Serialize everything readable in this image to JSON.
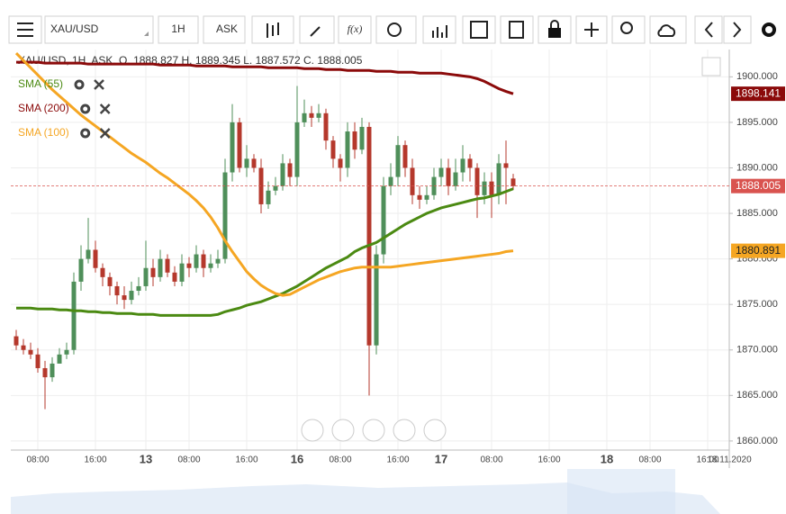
{
  "toolbar": {
    "symbol": "XAU/USD",
    "timeframe": "1H",
    "price_type": "ASK"
  },
  "chart_data": {
    "type": "candlestick",
    "header": "XAU/USD, 1H, ASK,",
    "ohlc_labels": [
      "O.",
      "H.",
      "L.",
      "C."
    ],
    "xlim": [
      0,
      99
    ],
    "xticks": [
      {
        "value": 3,
        "label": "08:00"
      },
      {
        "value": 11,
        "label": "16:00"
      },
      {
        "value": 18,
        "label": "13"
      },
      {
        "value": 24,
        "label": "08:00"
      },
      {
        "value": 32,
        "label": "16:00"
      },
      {
        "value": 39,
        "label": "16"
      },
      {
        "value": 45,
        "label": "08:00"
      },
      {
        "value": 53,
        "label": "16:00"
      },
      {
        "value": 59,
        "label": "17"
      },
      {
        "value": 66,
        "label": "08:00"
      },
      {
        "value": 74,
        "label": "16:00"
      },
      {
        "value": 82,
        "label": "18"
      },
      {
        "value": 88,
        "label": "08:00"
      },
      {
        "value": 96,
        "label": "16:00"
      },
      {
        "value": 99,
        "label": "18.11.2020"
      }
    ],
    "ylim": [
      1859,
      1903
    ],
    "yticks": [
      {
        "value": 1860,
        "label": "1860.000"
      },
      {
        "value": 1865,
        "label": "1865.000"
      },
      {
        "value": 1870,
        "label": "1870.000"
      },
      {
        "value": 1875,
        "label": "1875.000"
      },
      {
        "value": 1880,
        "label": "1880.000"
      },
      {
        "value": 1885,
        "label": "1885.000"
      },
      {
        "value": 1890,
        "label": "1890.000"
      },
      {
        "value": 1895,
        "label": "1895.000"
      },
      {
        "value": 1900,
        "label": "1900.000"
      }
    ],
    "grid": true,
    "up_color": "#4f8f5a",
    "down_color": "#b5382c",
    "open": [
      1871.5,
      1870.5,
      1870,
      1869.5,
      1868,
      1867,
      1868.5,
      1869.5,
      1870,
      1877.5,
      1880,
      1881,
      1879,
      1878,
      1877,
      1876,
      1875.5,
      1876.5,
      1877,
      1879,
      1878,
      1880,
      1878.5,
      1877.5,
      1879.5,
      1879,
      1880.5,
      1879,
      1879.5,
      1880,
      1889.5,
      1895,
      1890,
      1891,
      1890,
      1886,
      1887.5,
      1888,
      1890.5,
      1889,
      1895,
      1896,
      1895.5,
      1896,
      1893,
      1891,
      1890,
      1894,
      1892,
      1894.5,
      1870.5,
      1880.5,
      1888,
      1889,
      1892.5,
      1890,
      1887,
      1886.5,
      1887,
      1889,
      1890,
      1888,
      1889.5,
      1891,
      1890,
      1887,
      1888.5,
      1887,
      1890.5,
      1888.827
    ],
    "high": [
      1872.2,
      1871.2,
      1870.8,
      1870.2,
      1868.8,
      1869.2,
      1870.2,
      1870.8,
      1878.5,
      1881.5,
      1884.5,
      1882,
      1879.5,
      1878.5,
      1877.5,
      1877,
      1877.5,
      1878,
      1882,
      1880,
      1881,
      1880.5,
      1879.2,
      1880.5,
      1880.2,
      1881.5,
      1881,
      1880.5,
      1881,
      1891,
      1897,
      1895.5,
      1892.5,
      1891.5,
      1891,
      1888.5,
      1889,
      1891.5,
      1891,
      1899,
      1897.5,
      1896.8,
      1897,
      1896.5,
      1893.5,
      1891.5,
      1895,
      1895,
      1895.5,
      1895,
      1881.5,
      1889,
      1890.5,
      1893.5,
      1893,
      1891,
      1888,
      1888,
      1890,
      1891,
      1891,
      1891,
      1892.5,
      1891.5,
      1890.5,
      1889.5,
      1889.5,
      1891.5,
      1893,
      1889.345
    ],
    "low": [
      1870,
      1869.5,
      1869,
      1867.5,
      1863.5,
      1866.5,
      1868.5,
      1869,
      1869.5,
      1876.5,
      1879.5,
      1878.5,
      1877,
      1876,
      1875,
      1874.5,
      1875,
      1876,
      1876.5,
      1877,
      1877.5,
      1878,
      1877,
      1877,
      1878,
      1878.5,
      1878,
      1878.5,
      1879,
      1879.5,
      1888.5,
      1889.5,
      1889,
      1889.5,
      1885,
      1885.5,
      1887,
      1887.5,
      1888,
      1888,
      1894.5,
      1894.5,
      1895,
      1892,
      1890,
      1888.5,
      1889,
      1891,
      1891.5,
      1865,
      1869.5,
      1879.5,
      1887,
      1888,
      1889,
      1886,
      1885.5,
      1886,
      1886.5,
      1888,
      1887,
      1887.5,
      1888.5,
      1888.5,
      1884.5,
      1886,
      1884.5,
      1886,
      1886,
      1887.572
    ],
    "close": [
      1870.5,
      1870,
      1869.5,
      1868,
      1867,
      1868.5,
      1869.5,
      1870,
      1877.5,
      1880,
      1881,
      1879,
      1878,
      1877,
      1876,
      1875.5,
      1876.5,
      1877,
      1879,
      1878,
      1880,
      1878.5,
      1877.5,
      1879.5,
      1879,
      1880.5,
      1879,
      1879.5,
      1880,
      1889.5,
      1895,
      1890,
      1891,
      1890,
      1886,
      1887.5,
      1888,
      1890.5,
      1889,
      1895,
      1896,
      1895.5,
      1896,
      1893,
      1891,
      1890,
      1894,
      1892,
      1894.5,
      1870.5,
      1880.5,
      1888,
      1889,
      1892.5,
      1890,
      1887,
      1886.5,
      1887,
      1889,
      1890,
      1888,
      1889.5,
      1891,
      1890,
      1887,
      1888.5,
      1887,
      1890.5,
      1890,
      1888.005
    ],
    "series": [
      {
        "name": "SMA (55)",
        "color": "#4b8a12",
        "values": [
          1874.6,
          1874.6,
          1874.6,
          1874.5,
          1874.5,
          1874.5,
          1874.4,
          1874.4,
          1874.3,
          1874.3,
          1874.2,
          1874.2,
          1874.1,
          1874.1,
          1874.0,
          1874.0,
          1874.0,
          1873.9,
          1873.9,
          1873.9,
          1873.8,
          1873.8,
          1873.8,
          1873.8,
          1873.8,
          1873.8,
          1873.8,
          1873.8,
          1873.9,
          1874.2,
          1874.4,
          1874.6,
          1874.9,
          1875.1,
          1875.3,
          1875.6,
          1875.9,
          1876.2,
          1876.6,
          1877.0,
          1877.5,
          1878.0,
          1878.5,
          1879.0,
          1879.4,
          1879.8,
          1880.2,
          1880.8,
          1881.2,
          1881.5,
          1881.8,
          1882.3,
          1882.8,
          1883.3,
          1883.8,
          1884.2,
          1884.6,
          1885.0,
          1885.3,
          1885.6,
          1885.8,
          1886.0,
          1886.2,
          1886.4,
          1886.6,
          1886.7,
          1886.9,
          1887.1,
          1887.4,
          1887.7
        ]
      },
      {
        "name": "SMA (200)",
        "color": "#8b0a0a",
        "value_label": "1898.141",
        "values": [
          1901.6,
          1901.6,
          1901.6,
          1901.6,
          1901.5,
          1901.5,
          1901.5,
          1901.5,
          1901.5,
          1901.5,
          1901.4,
          1901.4,
          1901.4,
          1901.4,
          1901.4,
          1901.4,
          1901.4,
          1901.4,
          1901.4,
          1901.4,
          1901.3,
          1901.3,
          1901.3,
          1901.3,
          1901.3,
          1901.2,
          1901.2,
          1901.2,
          1901.2,
          1901.2,
          1901.1,
          1901.1,
          1901.1,
          1901.1,
          1901.1,
          1901.0,
          1901.0,
          1901.0,
          1901.0,
          1901.0,
          1900.9,
          1900.9,
          1900.9,
          1900.8,
          1900.8,
          1900.8,
          1900.7,
          1900.7,
          1900.7,
          1900.7,
          1900.6,
          1900.6,
          1900.6,
          1900.5,
          1900.5,
          1900.5,
          1900.4,
          1900.4,
          1900.4,
          1900.4,
          1900.3,
          1900.2,
          1900.1,
          1900.0,
          1899.8,
          1899.5,
          1899.1,
          1898.7,
          1898.4,
          1898.141
        ]
      },
      {
        "name": "SMA (100)",
        "color": "#f5a623",
        "value_label": "1880.891",
        "values": [
          1902.6,
          1901.8,
          1901.0,
          1900.2,
          1899.4,
          1898.6,
          1897.9,
          1897.2,
          1896.5,
          1895.8,
          1895.2,
          1894.6,
          1894.0,
          1893.4,
          1892.8,
          1892.2,
          1891.6,
          1891.1,
          1890.6,
          1890.0,
          1889.4,
          1888.9,
          1888.3,
          1887.7,
          1887.1,
          1886.4,
          1885.6,
          1884.6,
          1883.4,
          1882.0,
          1880.8,
          1879.7,
          1878.6,
          1877.8,
          1877.1,
          1876.6,
          1876.2,
          1876.0,
          1876.1,
          1876.5,
          1876.9,
          1877.3,
          1877.7,
          1878.0,
          1878.3,
          1878.6,
          1878.8,
          1879.0,
          1879.1,
          1879.1,
          1879.1,
          1879.1,
          1879.1,
          1879.2,
          1879.3,
          1879.4,
          1879.5,
          1879.6,
          1879.7,
          1879.8,
          1879.9,
          1880.0,
          1880.1,
          1880.2,
          1880.3,
          1880.4,
          1880.5,
          1880.6,
          1880.8,
          1880.891
        ]
      }
    ],
    "last_label": "1888.005",
    "last_color": "#d9534f"
  }
}
